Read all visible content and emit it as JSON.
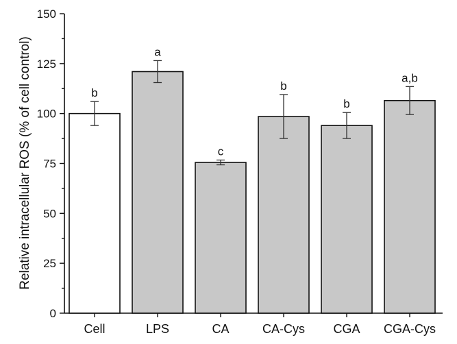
{
  "chart_data": {
    "type": "bar",
    "title": "",
    "xlabel": "",
    "ylabel": "Relative intracellular ROS (% of cell control)",
    "ylim": [
      0,
      150
    ],
    "yticks": [
      0,
      25,
      50,
      75,
      100,
      125,
      150
    ],
    "categories": [
      "Cell",
      "LPS",
      "CA",
      "CA-Cys",
      "CGA",
      "CGA-Cys"
    ],
    "values": [
      100,
      121,
      75.5,
      98.5,
      94,
      106.5
    ],
    "error": [
      6,
      5.5,
      1.2,
      11,
      6.5,
      7
    ],
    "significance": [
      "b",
      "a",
      "c",
      "b",
      "b",
      "a,b"
    ],
    "fill_colors": [
      "#ffffff",
      "#c8c8c8",
      "#c8c8c8",
      "#c8c8c8",
      "#c8c8c8",
      "#c8c8c8"
    ],
    "edge_color": "#111111",
    "grid": false,
    "legend": "none"
  }
}
